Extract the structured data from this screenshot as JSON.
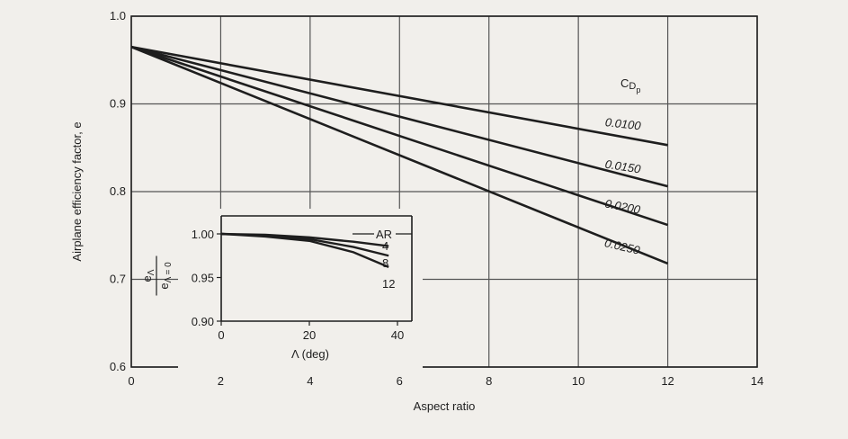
{
  "chart_data": [
    {
      "type": "line",
      "title": "",
      "xlabel": "Aspect ratio",
      "ylabel": "Airplane efficiency factor, e",
      "xlim": [
        0,
        14
      ],
      "ylim": [
        0.6,
        1.0
      ],
      "x_ticks": [
        "0",
        "2",
        "4",
        "6",
        "8",
        "10",
        "12",
        "14"
      ],
      "y_ticks": [
        "0.6",
        "0.7",
        "0.8",
        "0.9",
        "1.0"
      ],
      "grid": true,
      "legend_title": "CDp",
      "series": [
        {
          "name": "0.0100",
          "x": [
            0,
            12
          ],
          "y": [
            0.965,
            0.853
          ]
        },
        {
          "name": "0.0150",
          "x": [
            0,
            12
          ],
          "y": [
            0.965,
            0.806
          ]
        },
        {
          "name": "0.0200",
          "x": [
            0,
            12
          ],
          "y": [
            0.965,
            0.762
          ]
        },
        {
          "name": "0.0250",
          "x": [
            0,
            12
          ],
          "y": [
            0.965,
            0.718
          ]
        }
      ]
    },
    {
      "type": "line",
      "title": "",
      "xlabel": "Λ (deg)",
      "ylabel": "eΛ / eΛ=0",
      "xlim": [
        0,
        40
      ],
      "ylim": [
        0.9,
        1.0
      ],
      "x_ticks": [
        "0",
        "20",
        "40"
      ],
      "y_ticks": [
        "0.90",
        "0.95",
        "1.00"
      ],
      "grid": false,
      "legend_title": "AR",
      "series": [
        {
          "name": "4",
          "x": [
            0,
            10,
            20,
            30,
            38
          ],
          "y": [
            1.0,
            0.999,
            0.996,
            0.991,
            0.986
          ]
        },
        {
          "name": "8",
          "x": [
            0,
            10,
            20,
            30,
            38
          ],
          "y": [
            1.0,
            0.998,
            0.994,
            0.985,
            0.975
          ]
        },
        {
          "name": "12",
          "x": [
            0,
            10,
            20,
            30,
            38
          ],
          "y": [
            1.0,
            0.997,
            0.992,
            0.979,
            0.962
          ]
        }
      ]
    }
  ],
  "colors": {
    "background": "#f1efeb",
    "ink": "#1e1e1e",
    "grid": "#555555"
  }
}
